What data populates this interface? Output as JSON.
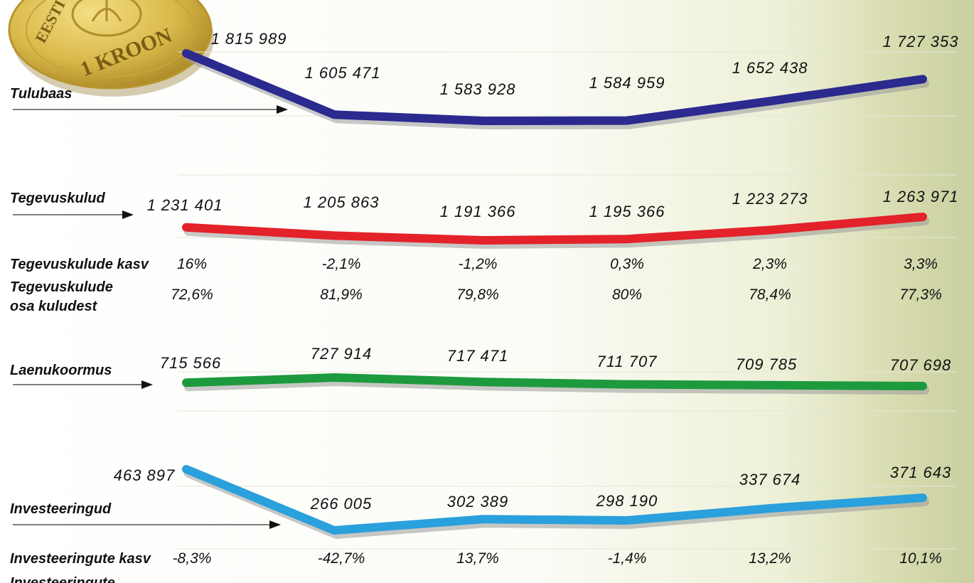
{
  "coin": {
    "top_text": "EESTI",
    "bottom_text": "1 KROON",
    "colors": {
      "face": "#d9b94a",
      "rim": "#b8952c",
      "shadow": "#8a6d1c"
    }
  },
  "chart_data": {
    "type": "line",
    "x_count": 6,
    "series": [
      {
        "name": "Tulubaas",
        "color": "#2b2a8f",
        "values": [
          1815989,
          1605471,
          1583928,
          1584959,
          1652438,
          1727353
        ],
        "labels": [
          "1 815 989",
          "1 605 471",
          "1 583 928",
          "1 584 959",
          "1 652 438",
          "1 727 353"
        ]
      },
      {
        "name": "Tegevuskulud",
        "color": "#e3222a",
        "values": [
          1231401,
          1205863,
          1191366,
          1195366,
          1223273,
          1263971
        ],
        "labels": [
          "1 231 401",
          "1 205 863",
          "1 191 366",
          "1 195 366",
          "1 223 273",
          "1 263 971"
        ]
      },
      {
        "name": "Laenukoormus",
        "color": "#1e9a3e",
        "values": [
          715566,
          727914,
          717471,
          711707,
          709785,
          707698
        ],
        "labels": [
          "715 566",
          "727 914",
          "717 471",
          "711 707",
          "709 785",
          "707 698"
        ]
      },
      {
        "name": "Investeeringud",
        "color": "#2aa0dc",
        "values": [
          463897,
          266005,
          302389,
          298190,
          337674,
          371643
        ],
        "labels": [
          "463 897",
          "266 005",
          "302 389",
          "298 190",
          "337 674",
          "371 643"
        ]
      }
    ],
    "rows": [
      {
        "label": "Tegevuskulude kasv",
        "values": [
          "16%",
          "-2,1%",
          "-1,2%",
          "0,3%",
          "2,3%",
          "3,3%"
        ]
      },
      {
        "label_lines": [
          "Tegevuskulude",
          "osa kuludest"
        ],
        "values": [
          "72,6%",
          "81,9%",
          "79,8%",
          "80%",
          "78,4%",
          "77,3%"
        ]
      },
      {
        "label": "Investeeringute  kasv",
        "values": [
          "-8,3%",
          "-42,7%",
          "13,7%",
          "-1,4%",
          "13,2%",
          "10,1%"
        ]
      },
      {
        "label": "Investeeringute"
      }
    ]
  }
}
